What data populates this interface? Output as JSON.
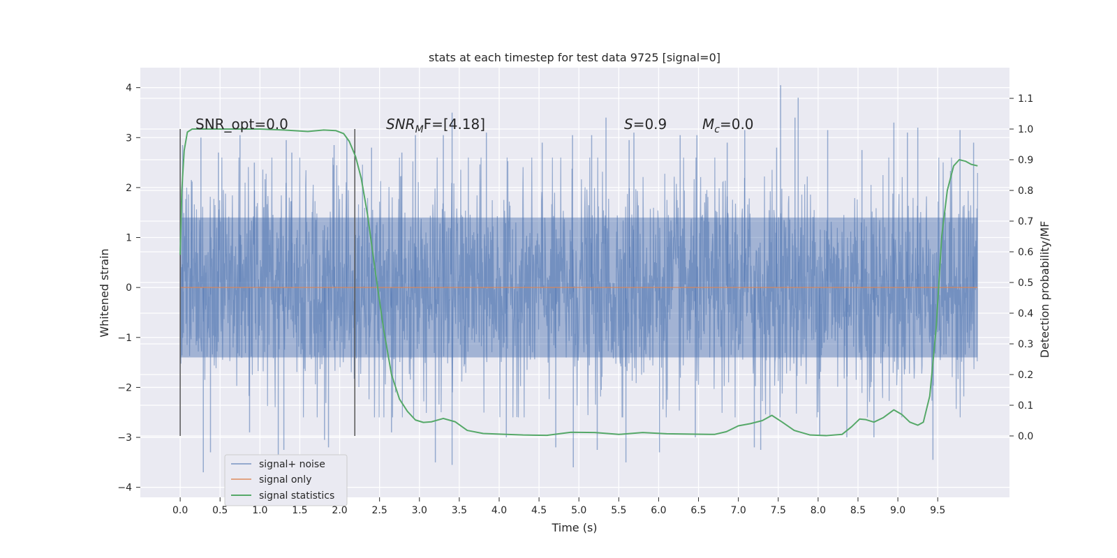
{
  "chart_data": {
    "type": "line",
    "title": "stats at each timestep for test data 9725 [signal=0]",
    "xlabel": "Time (s)",
    "ylabel_left": "Whitened strain",
    "ylabel_right": "Detection probability/MF",
    "xlim": [
      -0.5,
      10.4
    ],
    "ylim_left": [
      -4.2,
      4.4
    ],
    "ylim_right": [
      -0.2,
      1.2
    ],
    "x_ticks": [
      "0.0",
      "0.5",
      "1.0",
      "1.5",
      "2.0",
      "2.5",
      "3.0",
      "3.5",
      "4.0",
      "4.5",
      "5.0",
      "5.5",
      "6.0",
      "6.5",
      "7.0",
      "7.5",
      "8.0",
      "8.5",
      "9.0",
      "9.5"
    ],
    "y_ticks_left": [
      "4",
      "3",
      "2",
      "1",
      "0",
      "−1",
      "−2",
      "−3",
      "−4"
    ],
    "y_ticks_right": [
      "1.1",
      "1.0",
      "0.9",
      "0.8",
      "0.7",
      "0.6",
      "0.5",
      "0.4",
      "0.3",
      "0.2",
      "0.1",
      "0.0"
    ],
    "grid": true,
    "legend_position": "lower-left",
    "annotations": {
      "snr_opt": "SNR_opt=0.0",
      "snr_mf_main": "SNR",
      "snr_mf_sub": "M",
      "snr_mf_rest": "F=[4.18]",
      "s_var": "S",
      "s_rest": "=0.9",
      "mc_var": "M",
      "mc_sub": "c",
      "mc_rest": "=0.0"
    },
    "vertical_lines_x": [
      0.0,
      2.19
    ],
    "series": [
      {
        "name": "signal+ noise",
        "color": "#4c72b0",
        "x_range": [
          0.0,
          10.0
        ],
        "description_values": {
          "envelope_min": -3.7,
          "envelope_max": 4.05,
          "typical_abs": 1.4
        },
        "spikes_up": [
          [
            0.03,
            2.85
          ],
          [
            0.14,
            2.15
          ],
          [
            0.26,
            3.0
          ],
          [
            0.48,
            2.7
          ],
          [
            0.75,
            3.05
          ],
          [
            0.93,
            2.5
          ],
          [
            1.33,
            2.95
          ],
          [
            1.4,
            2.7
          ],
          [
            1.93,
            2.85
          ],
          [
            2.09,
            3.0
          ],
          [
            2.4,
            2.8
          ],
          [
            2.78,
            2.7
          ],
          [
            2.95,
            3.05
          ],
          [
            3.3,
            3.05
          ],
          [
            3.41,
            3.5
          ],
          [
            3.84,
            3.1
          ],
          [
            4.54,
            2.9
          ],
          [
            4.92,
            3.05
          ],
          [
            5.16,
            3.05
          ],
          [
            5.34,
            3.4
          ],
          [
            5.63,
            2.95
          ],
          [
            5.69,
            3.1
          ],
          [
            6.27,
            3.05
          ],
          [
            6.48,
            3.05
          ],
          [
            6.86,
            2.9
          ],
          [
            7.08,
            3.15
          ],
          [
            7.48,
            2.8
          ],
          [
            7.53,
            4.05
          ],
          [
            7.71,
            3.4
          ],
          [
            7.75,
            3.8
          ],
          [
            8.12,
            3.15
          ],
          [
            8.55,
            2.75
          ],
          [
            8.95,
            3.3
          ],
          [
            9.12,
            3.1
          ],
          [
            9.25,
            3.2
          ],
          [
            9.78,
            3.15
          ],
          [
            9.95,
            2.9
          ]
        ],
        "spikes_down": [
          [
            0.29,
            -3.7
          ],
          [
            0.38,
            -3.3
          ],
          [
            0.87,
            -2.9
          ],
          [
            1.23,
            -3.4
          ],
          [
            1.3,
            -3.25
          ],
          [
            1.81,
            -3.05
          ],
          [
            1.86,
            -3.2
          ],
          [
            2.65,
            -2.9
          ],
          [
            3.2,
            -3.5
          ],
          [
            3.41,
            -3.55
          ],
          [
            4.09,
            -3.0
          ],
          [
            4.71,
            -3.2
          ],
          [
            4.93,
            -3.6
          ],
          [
            5.23,
            -3.25
          ],
          [
            5.59,
            -3.5
          ],
          [
            6.01,
            -3.3
          ],
          [
            6.46,
            -3.0
          ],
          [
            7.2,
            -3.2
          ],
          [
            7.28,
            -3.25
          ],
          [
            8.02,
            -2.95
          ],
          [
            8.36,
            -3.0
          ],
          [
            8.7,
            -3.0
          ],
          [
            9.44,
            -3.45
          ]
        ]
      },
      {
        "name": "signal only",
        "color": "#dd8452",
        "x": [
          0.0,
          10.0
        ],
        "y": [
          0.0,
          0.0
        ]
      },
      {
        "name": "signal statistics",
        "color": "#55a868",
        "axis": "right",
        "x": [
          0.0,
          0.02,
          0.05,
          0.09,
          0.15,
          0.25,
          0.5,
          0.8,
          1.0,
          1.3,
          1.6,
          1.8,
          1.95,
          2.05,
          2.12,
          2.2,
          2.27,
          2.35,
          2.45,
          2.55,
          2.65,
          2.75,
          2.85,
          2.95,
          3.05,
          3.15,
          3.3,
          3.45,
          3.6,
          3.8,
          4.0,
          4.3,
          4.6,
          4.9,
          5.2,
          5.5,
          5.8,
          6.1,
          6.4,
          6.7,
          6.85,
          7.0,
          7.15,
          7.3,
          7.42,
          7.55,
          7.7,
          7.9,
          8.1,
          8.3,
          8.42,
          8.52,
          8.6,
          8.7,
          8.82,
          8.95,
          9.05,
          9.15,
          9.25,
          9.32,
          9.4,
          9.48,
          9.55,
          9.62,
          9.7,
          9.77,
          9.85,
          9.92,
          10.0
        ],
        "y": [
          0.59,
          0.8,
          0.93,
          0.99,
          1.0,
          1.0,
          1.0,
          1.0,
          1.0,
          0.997,
          0.992,
          0.997,
          0.995,
          0.985,
          0.96,
          0.91,
          0.84,
          0.72,
          0.53,
          0.35,
          0.2,
          0.12,
          0.08,
          0.052,
          0.044,
          0.046,
          0.057,
          0.046,
          0.018,
          0.008,
          0.006,
          0.003,
          0.002,
          0.012,
          0.011,
          0.005,
          0.011,
          0.007,
          0.006,
          0.005,
          0.014,
          0.033,
          0.04,
          0.05,
          0.067,
          0.045,
          0.018,
          0.003,
          0.001,
          0.005,
          0.03,
          0.055,
          0.053,
          0.045,
          0.06,
          0.085,
          0.07,
          0.045,
          0.035,
          0.045,
          0.13,
          0.35,
          0.65,
          0.8,
          0.88,
          0.9,
          0.895,
          0.885,
          0.88
        ]
      }
    ]
  }
}
